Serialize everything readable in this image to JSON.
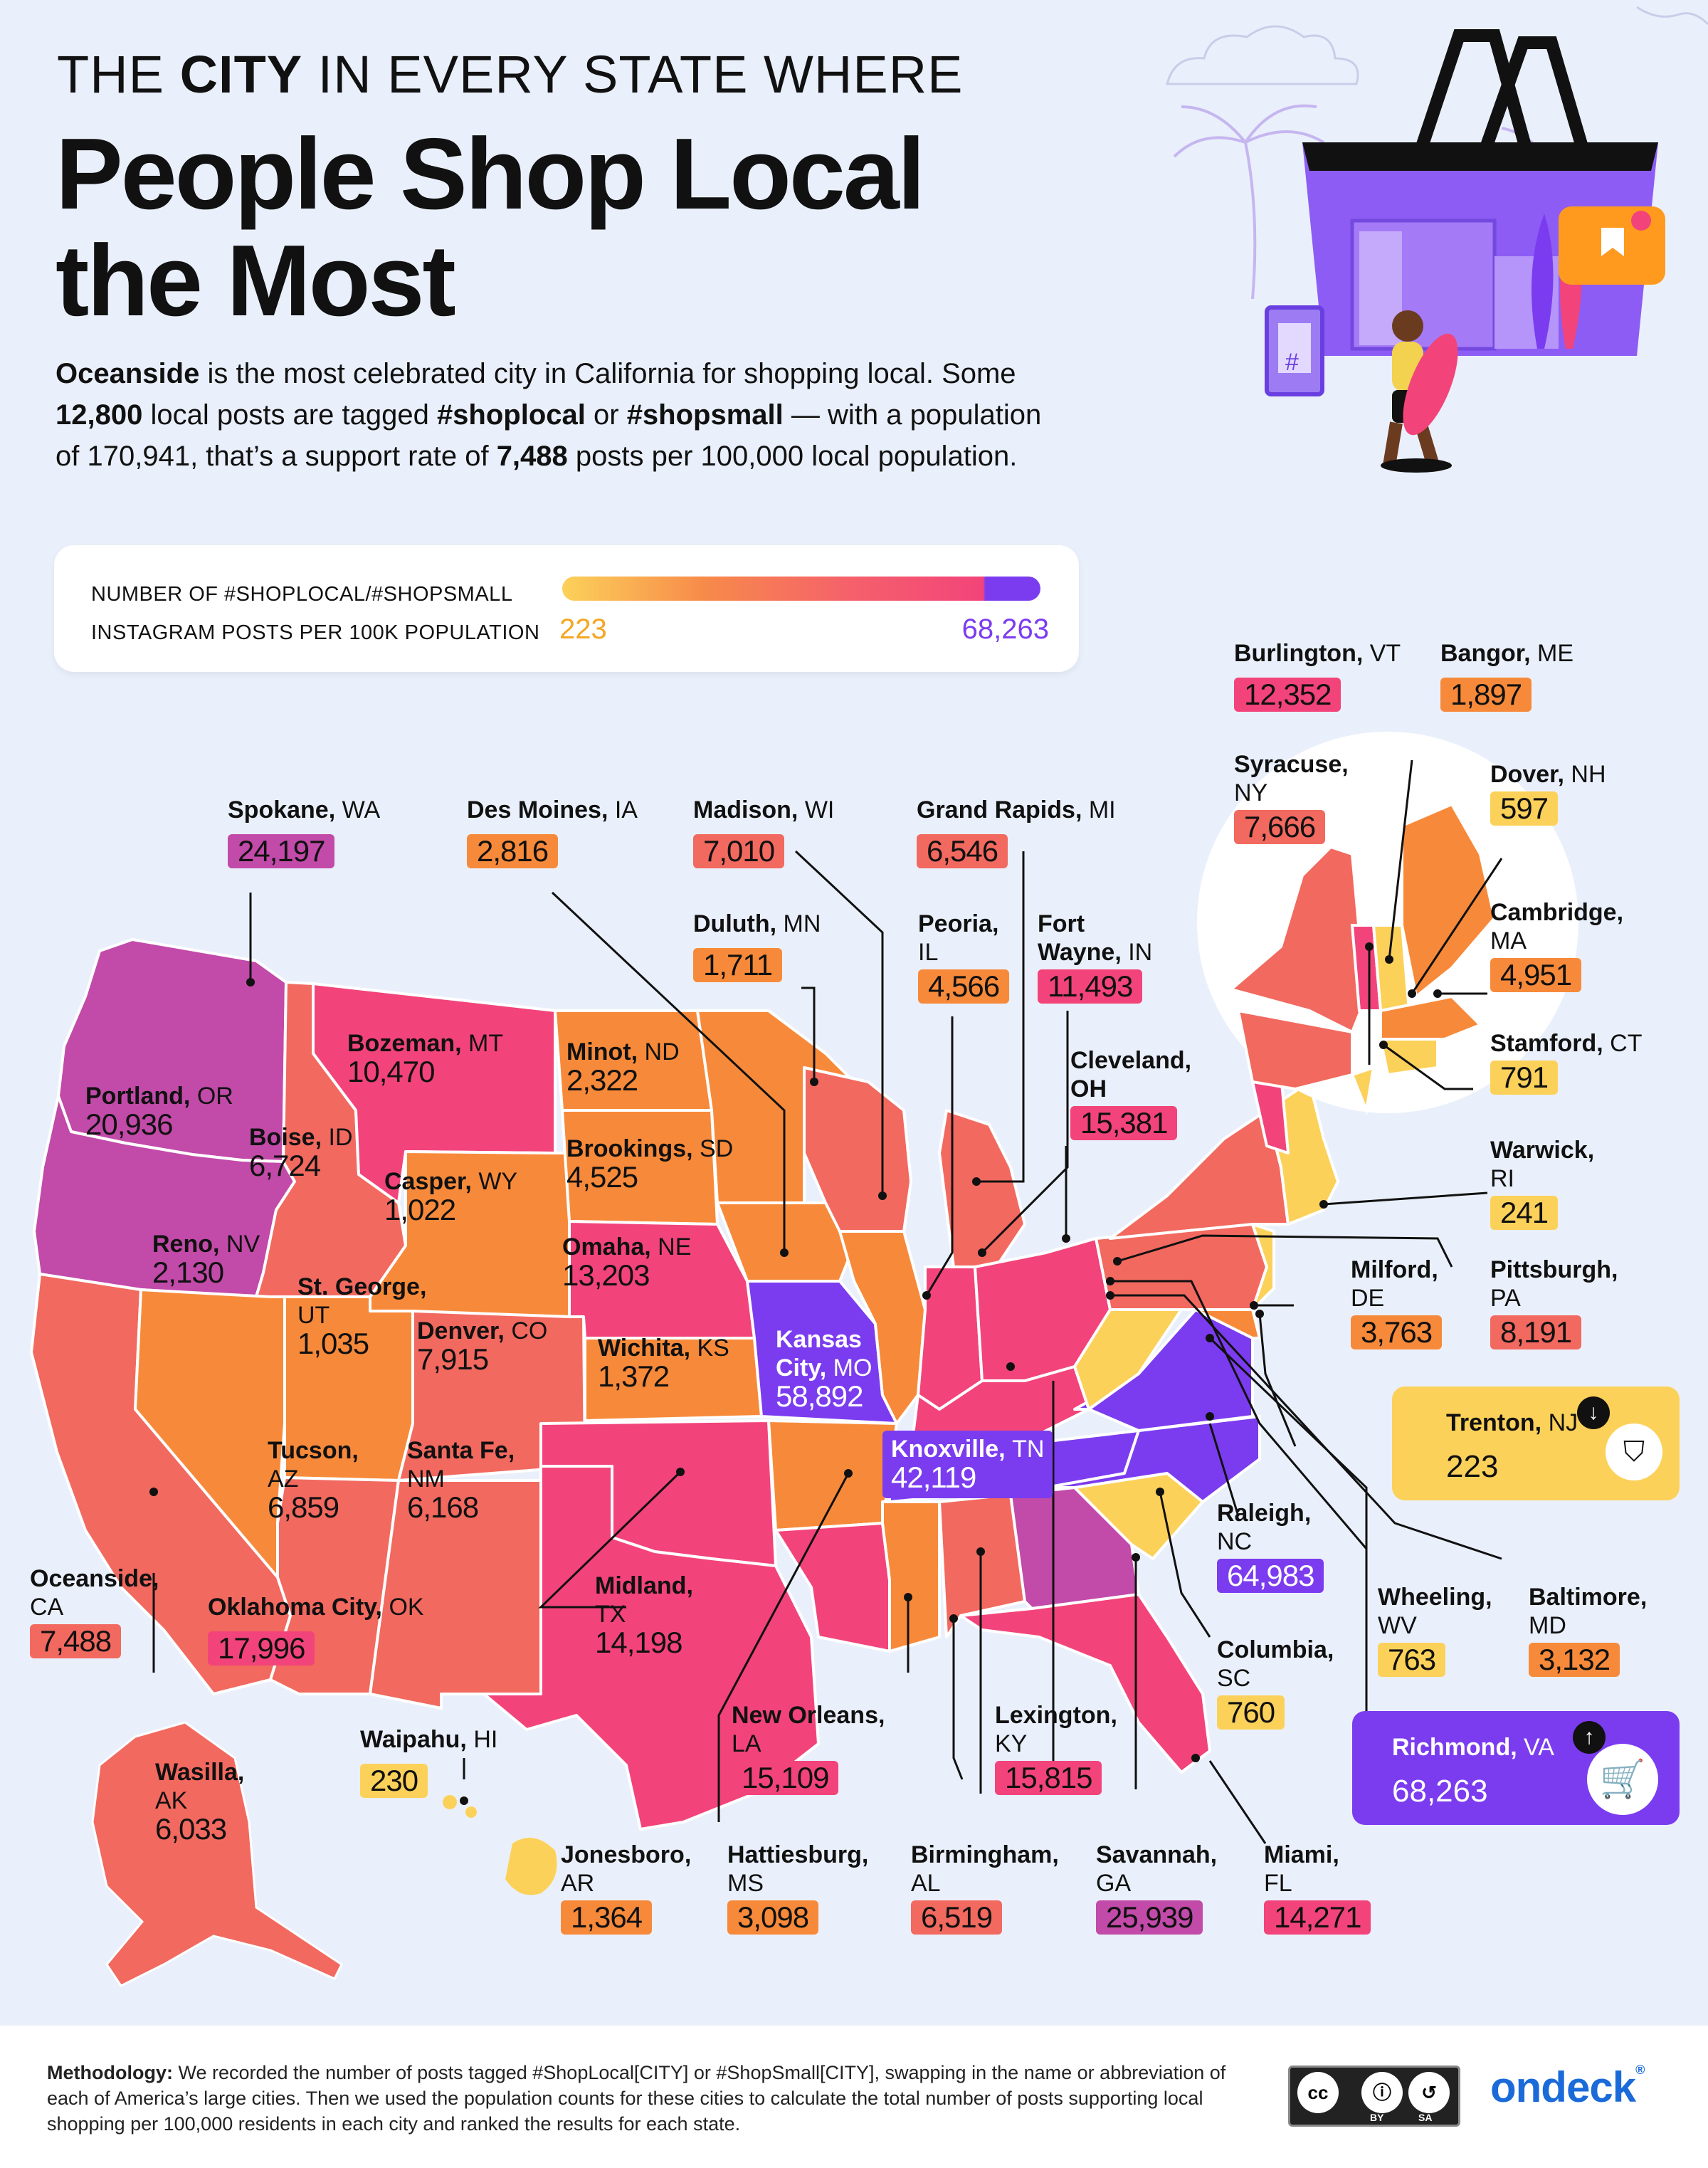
{
  "headline": {
    "kicker_pre": "THE ",
    "kicker_bold": "CITY",
    "kicker_post": " IN EVERY STATE WHERE",
    "title_line1": "People Shop Local",
    "title_line2": "the Most"
  },
  "intro": {
    "p1_bold": "Oceanside",
    "p1_text": " is the most celebrated city in California for shopping local. Some",
    "p2_bold1": "12,800",
    "p2_text1": " local posts are tagged ",
    "p2_bold2": "#shoplocal",
    "p2_text2": " or ",
    "p2_bold3": "#shopsmall",
    "p2_text3": " — with a population",
    "p3_text1": "of 170,941, that’s a support rate of ",
    "p3_bold": "7,488",
    "p3_text2": " posts per 100,000 local population."
  },
  "legend": {
    "title_line1": "NUMBER OF #SHOPLOCAL/#SHOPSMALL",
    "title_line2": "INSTAGRAM POSTS PER 100K POPULATION",
    "min": "223",
    "max": "68,263",
    "colors": [
      "#fcd15a",
      "#f78a4a",
      "#f5616b",
      "#f2447a",
      "#7b3cf0"
    ]
  },
  "cities": {
    "spokane": {
      "city": "Spokane",
      "state": "WA",
      "value": "24,197"
    },
    "des_moines": {
      "city": "Des Moines",
      "state": "IA",
      "value": "2,816"
    },
    "madison": {
      "city": "Madison",
      "state": "WI",
      "value": "7,010"
    },
    "grand_rapids": {
      "city": "Grand Rapids",
      "state": "MI",
      "value": "6,546"
    },
    "duluth": {
      "city": "Duluth",
      "state": "MN",
      "value": "1,711"
    },
    "peoria": {
      "city": "Peoria",
      "state": "IL",
      "value": "4,566"
    },
    "fort_wayne": {
      "city_line1": "Fort",
      "city_line2": "Wayne",
      "state": "IN",
      "value": "11,493"
    },
    "cleveland": {
      "city": "Cleveland",
      "state": "OH",
      "value": "15,381"
    },
    "bozeman": {
      "city": "Bozeman",
      "state": "MT",
      "value": "10,470"
    },
    "minot": {
      "city": "Minot",
      "state": "ND",
      "value": "2,322"
    },
    "portland": {
      "city": "Portland",
      "state": "OR",
      "value": "20,936"
    },
    "boise": {
      "city": "Boise",
      "state": "ID",
      "value": "6,724"
    },
    "brookings": {
      "city": "Brookings",
      "state": "SD",
      "value": "4,525"
    },
    "casper": {
      "city": "Casper",
      "state": "WY",
      "value": "1,022"
    },
    "reno": {
      "city": "Reno",
      "state": "NV",
      "value": "2,130"
    },
    "omaha": {
      "city": "Omaha",
      "state": "NE",
      "value": "13,203"
    },
    "st_george": {
      "city": "St. George",
      "state": "UT",
      "value": "1,035"
    },
    "denver": {
      "city": "Denver",
      "state": "CO",
      "value": "7,915"
    },
    "wichita": {
      "city": "Wichita",
      "state": "KS",
      "value": "1,372"
    },
    "kansas_city": {
      "city_line1": "Kansas",
      "city_line2": "City",
      "state": "MO",
      "value": "58,892"
    },
    "knoxville": {
      "city": "Knoxville",
      "state": "TN",
      "value": "42,119"
    },
    "tucson": {
      "city": "Tucson",
      "state": "AZ",
      "value": "6,859"
    },
    "santa_fe": {
      "city": "Santa Fe",
      "state": "NM",
      "value": "6,168"
    },
    "midland": {
      "city": "Midland",
      "state": "TX",
      "value": "14,198"
    },
    "oceanside": {
      "city": "Oceanside",
      "state": "CA",
      "value": "7,488"
    },
    "oklahoma_city": {
      "city": "Oklahoma City",
      "state": "OK",
      "value": "17,996"
    },
    "new_orleans": {
      "city": "New Orleans",
      "state": "LA",
      "value": "15,109"
    },
    "lexington": {
      "city": "Lexington",
      "state": "KY",
      "value": "15,815"
    },
    "waipahu": {
      "city": "Waipahu",
      "state": "HI",
      "value": "230"
    },
    "wasilla": {
      "city": "Wasilla",
      "state": "AK",
      "value": "6,033"
    },
    "jonesboro": {
      "city": "Jonesboro",
      "state": "AR",
      "value": "1,364"
    },
    "hattiesburg": {
      "city": "Hattiesburg",
      "state": "MS",
      "value": "3,098"
    },
    "birmingham": {
      "city": "Birmingham",
      "state": "AL",
      "value": "6,519"
    },
    "savannah": {
      "city": "Savannah",
      "state": "GA",
      "value": "25,939"
    },
    "miami": {
      "city": "Miami",
      "state": "FL",
      "value": "14,271"
    },
    "burlington": {
      "city": "Burlington",
      "state": "VT",
      "value": "12,352"
    },
    "bangor": {
      "city": "Bangor",
      "state": "ME",
      "value": "1,897"
    },
    "syracuse": {
      "city": "Syracuse",
      "state": "NY",
      "value": "7,666"
    },
    "dover": {
      "city": "Dover",
      "state": "NH",
      "value": "597"
    },
    "cambridge": {
      "city": "Cambridge",
      "state": "MA",
      "value": "4,951"
    },
    "stamford": {
      "city": "Stamford",
      "state": "CT",
      "value": "791"
    },
    "warwick": {
      "city": "Warwick",
      "state": "RI",
      "value": "241"
    },
    "milford": {
      "city": "Milford",
      "state": "DE",
      "value": "3,763"
    },
    "pittsburgh": {
      "city": "Pittsburgh",
      "state": "PA",
      "value": "8,191"
    },
    "raleigh": {
      "city": "Raleigh",
      "state": "NC",
      "value": "64,983"
    },
    "columbia": {
      "city": "Columbia",
      "state": "SC",
      "value": "760"
    },
    "wheeling": {
      "city": "Wheeling",
      "state": "WV",
      "value": "763"
    },
    "baltimore": {
      "city": "Baltimore",
      "state": "MD",
      "value": "3,132"
    }
  },
  "callouts": {
    "trenton": {
      "city": "Trenton",
      "state": "NJ",
      "value": "223",
      "icon": "shopping-bag-icon"
    },
    "richmond": {
      "city": "Richmond",
      "state": "VA",
      "value": "68,263",
      "icon": "shopping-cart-icon"
    }
  },
  "footer": {
    "methodology_label": "Methodology:",
    "methodology_text": " We recorded the number of posts tagged #ShopLocal[CITY] or #ShopSmall[CITY], swapping in the name or abbreviation of each of America’s large cities. Then we used the population counts for these cities to calculate the total number of posts supporting local shopping per 100,000 residents in each city and ranked the results for each state.",
    "cc_label": "cc",
    "by_label": "BY",
    "sa_label": "SA",
    "brand": "ondeck"
  }
}
